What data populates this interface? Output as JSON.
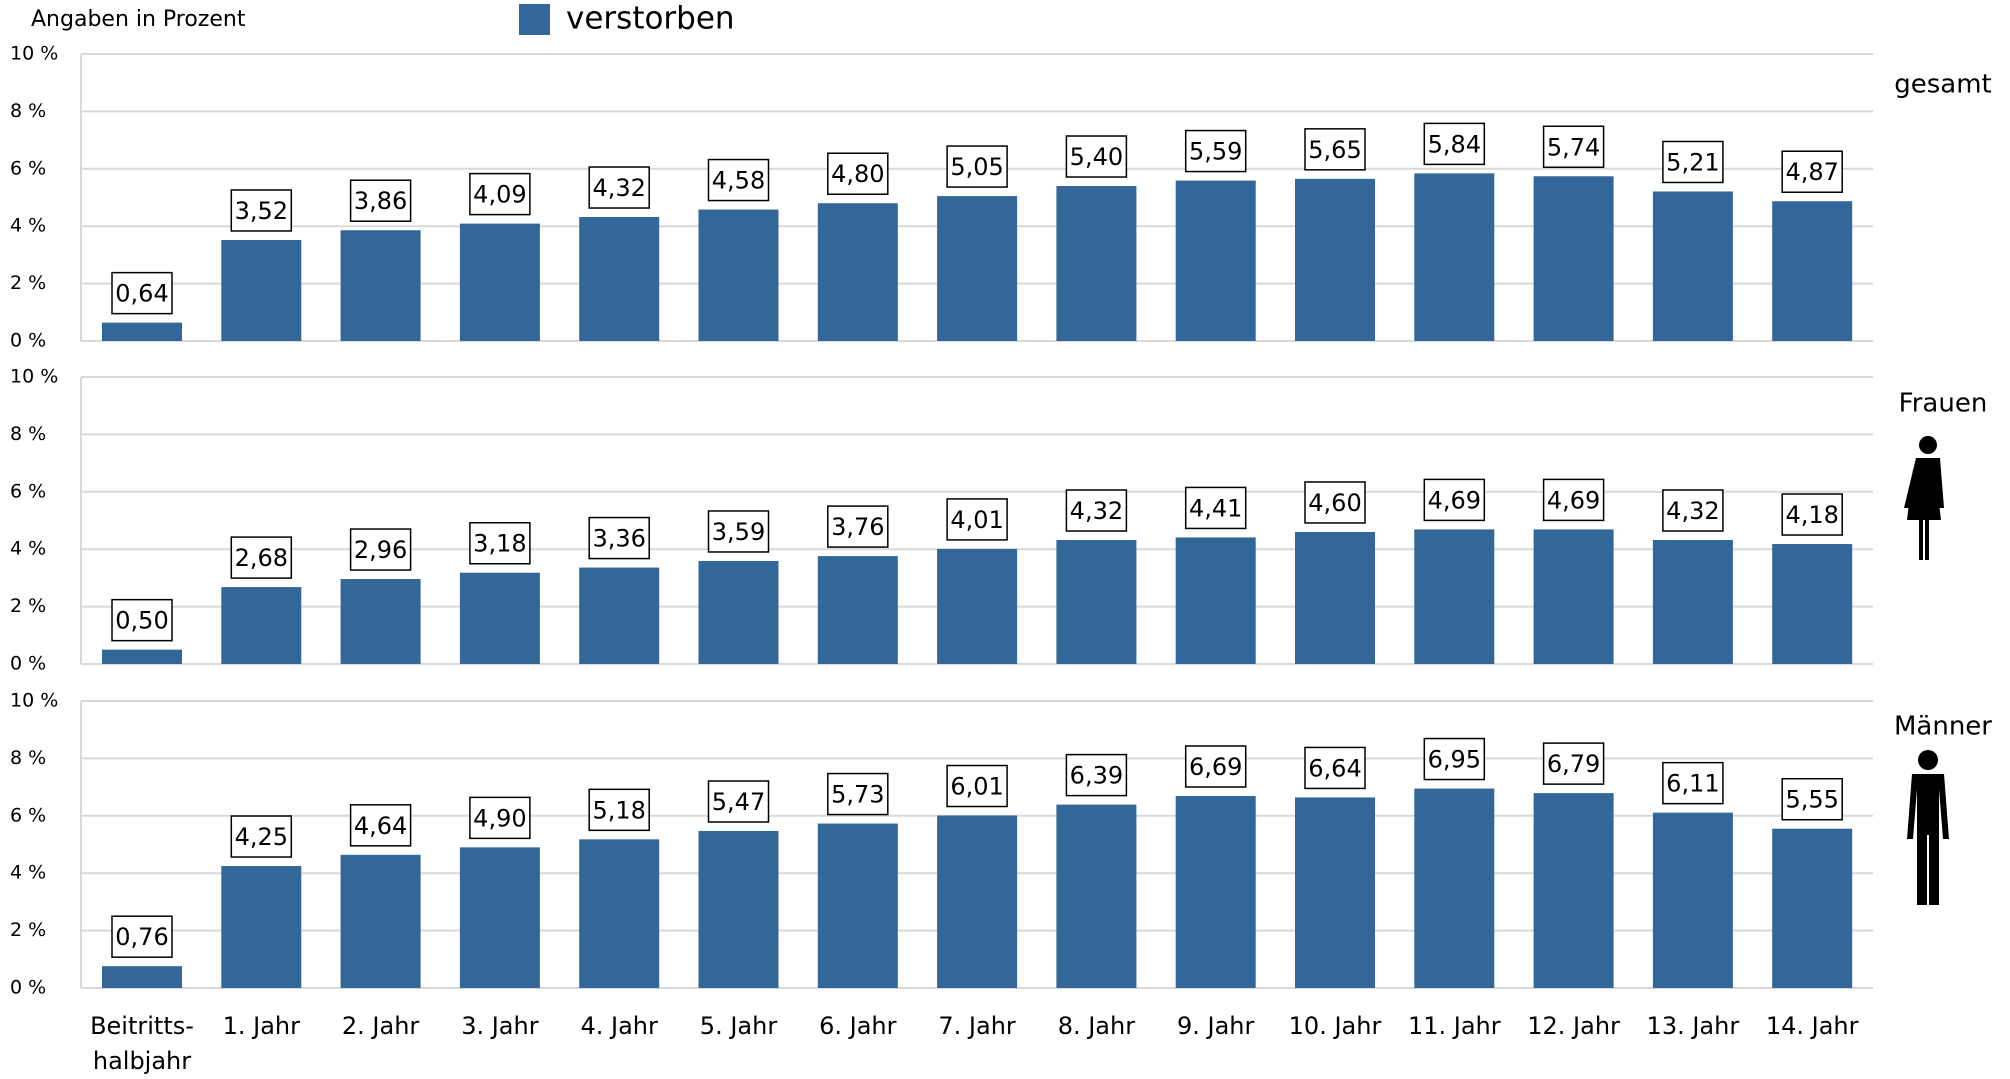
{
  "note": "Angaben in Prozent",
  "legend": {
    "name": "verstorben",
    "color": "#336699"
  },
  "categories": [
    "Beitritts-\nhalbjahr",
    "1. Jahr",
    "2. Jahr",
    "3. Jahr",
    "4. Jahr",
    "5. Jahr",
    "6. Jahr",
    "7. Jahr",
    "8. Jahr",
    "9. Jahr",
    "10. Jahr",
    "11. Jahr",
    "12. Jahr",
    "13. Jahr",
    "14. Jahr"
  ],
  "chart_data": [
    {
      "type": "bar",
      "title": "gesamt",
      "values": [
        0.64,
        3.52,
        3.86,
        4.09,
        4.32,
        4.58,
        4.8,
        5.05,
        5.4,
        5.59,
        5.65,
        5.84,
        5.74,
        5.21,
        4.87
      ],
      "value_labels": [
        "0,64",
        "3,52",
        "3,86",
        "4,09",
        "4,32",
        "4,58",
        "4,80",
        "5,05",
        "5,40",
        "5,59",
        "5,65",
        "5,84",
        "5,74",
        "5,21",
        "4,87"
      ],
      "ylim": [
        0,
        10
      ],
      "yticks": [
        {
          "value": 0,
          "label": "0 %"
        },
        {
          "value": 2,
          "label": "2 %"
        },
        {
          "value": 4,
          "label": "4 %"
        },
        {
          "value": 6,
          "label": "6 %"
        },
        {
          "value": 8,
          "label": "8 %"
        },
        {
          "value": 10,
          "label": "10 %"
        }
      ],
      "grid": true
    },
    {
      "type": "bar",
      "title": "Frauen",
      "values": [
        0.5,
        2.68,
        2.96,
        3.18,
        3.36,
        3.59,
        3.76,
        4.01,
        4.32,
        4.41,
        4.6,
        4.69,
        4.69,
        4.32,
        4.18
      ],
      "value_labels": [
        "0,50",
        "2,68",
        "2,96",
        "3,18",
        "3,36",
        "3,59",
        "3,76",
        "4,01",
        "4,32",
        "4,41",
        "4,60",
        "4,69",
        "4,69",
        "4,32",
        "4,18"
      ],
      "ylim": [
        0,
        10
      ],
      "yticks": [
        {
          "value": 0,
          "label": "0 %"
        },
        {
          "value": 2,
          "label": "2 %"
        },
        {
          "value": 4,
          "label": "4 %"
        },
        {
          "value": 6,
          "label": "6 %"
        },
        {
          "value": 8,
          "label": "8 %"
        },
        {
          "value": 10,
          "label": "10 %"
        }
      ],
      "grid": true
    },
    {
      "type": "bar",
      "title": "Männer",
      "values": [
        0.76,
        4.25,
        4.64,
        4.9,
        5.18,
        5.47,
        5.73,
        6.01,
        6.39,
        6.69,
        6.64,
        6.95,
        6.79,
        6.11,
        5.55
      ],
      "value_labels": [
        "0,76",
        "4,25",
        "4,64",
        "4,90",
        "5,18",
        "5,47",
        "5,73",
        "6,01",
        "6,39",
        "6,69",
        "6,64",
        "6,95",
        "6,79",
        "6,11",
        "5,55"
      ],
      "ylim": [
        0,
        10
      ],
      "yticks": [
        {
          "value": 0,
          "label": "0 %"
        },
        {
          "value": 2,
          "label": "2 %"
        },
        {
          "value": 4,
          "label": "4 %"
        },
        {
          "value": 6,
          "label": "6 %"
        },
        {
          "value": 8,
          "label": "8 %"
        },
        {
          "value": 10,
          "label": "10 %"
        }
      ],
      "grid": true
    }
  ]
}
